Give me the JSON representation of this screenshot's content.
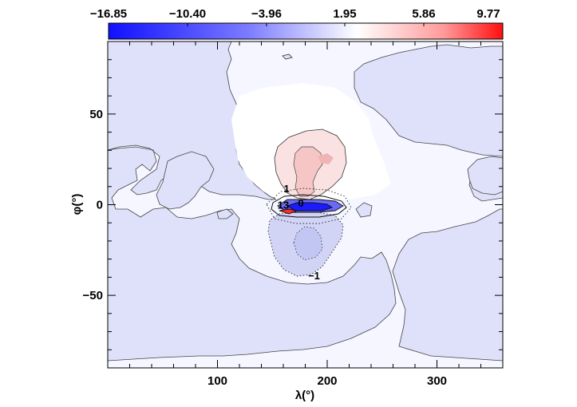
{
  "chart_data": {
    "type": "heatmap",
    "colorbar": {
      "ticks": [
        "−16.85",
        "−10.40",
        "−3.96",
        "1.95",
        "5.86",
        "9.77"
      ],
      "min": -16.85,
      "max": 9.77,
      "colors": {
        "negative": "#1010ff",
        "zero": "#ffffff",
        "positive": "#ff1010"
      }
    },
    "xlabel": "λ(°)",
    "ylabel": "φ(°)",
    "xlim": [
      0,
      360
    ],
    "ylim": [
      -90,
      90
    ],
    "xticks": [
      {
        "value": 100,
        "label": "100"
      },
      {
        "value": 200,
        "label": "200"
      },
      {
        "value": 300,
        "label": "300"
      }
    ],
    "yticks": [
      {
        "value": 50,
        "label": "50"
      },
      {
        "value": 0,
        "label": "0"
      },
      {
        "value": -50,
        "label": "−50"
      }
    ],
    "contour_labels": [
      {
        "text": "1",
        "x": 163,
        "y": 9
      },
      {
        "text": "0",
        "x": 176,
        "y": 1
      },
      {
        "text": "13",
        "x": 160,
        "y": 0
      },
      {
        "text": "−1",
        "x": 188,
        "y": -39
      }
    ]
  }
}
